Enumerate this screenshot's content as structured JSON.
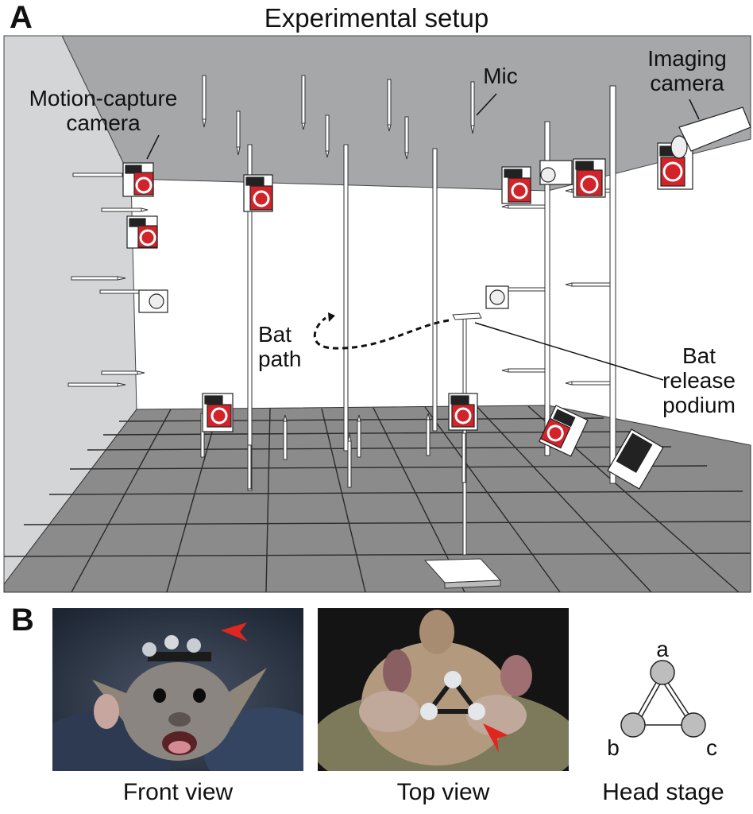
{
  "panel_a": {
    "letter": "A",
    "title": "Experimental setup",
    "labels": {
      "motion_capture_camera": "Motion-capture\ncamera",
      "mic": "Mic",
      "imaging_camera": "Imaging\ncamera",
      "bat_path": "Bat\npath",
      "bat_release_podium": "Bat\nrelease\npodium"
    }
  },
  "panel_b": {
    "letter": "B",
    "captions": {
      "front_view": "Front view",
      "top_view": "Top view",
      "head_stage": "Head stage"
    },
    "head_stage_markers": [
      "a",
      "b",
      "c"
    ]
  },
  "colors": {
    "ceiling": "#a8a8a8",
    "left_wall": "#d2d4d6",
    "floor": "#8c8c8c",
    "camera_red": "#d2232a",
    "arrowhead_red": "#e0261f"
  }
}
